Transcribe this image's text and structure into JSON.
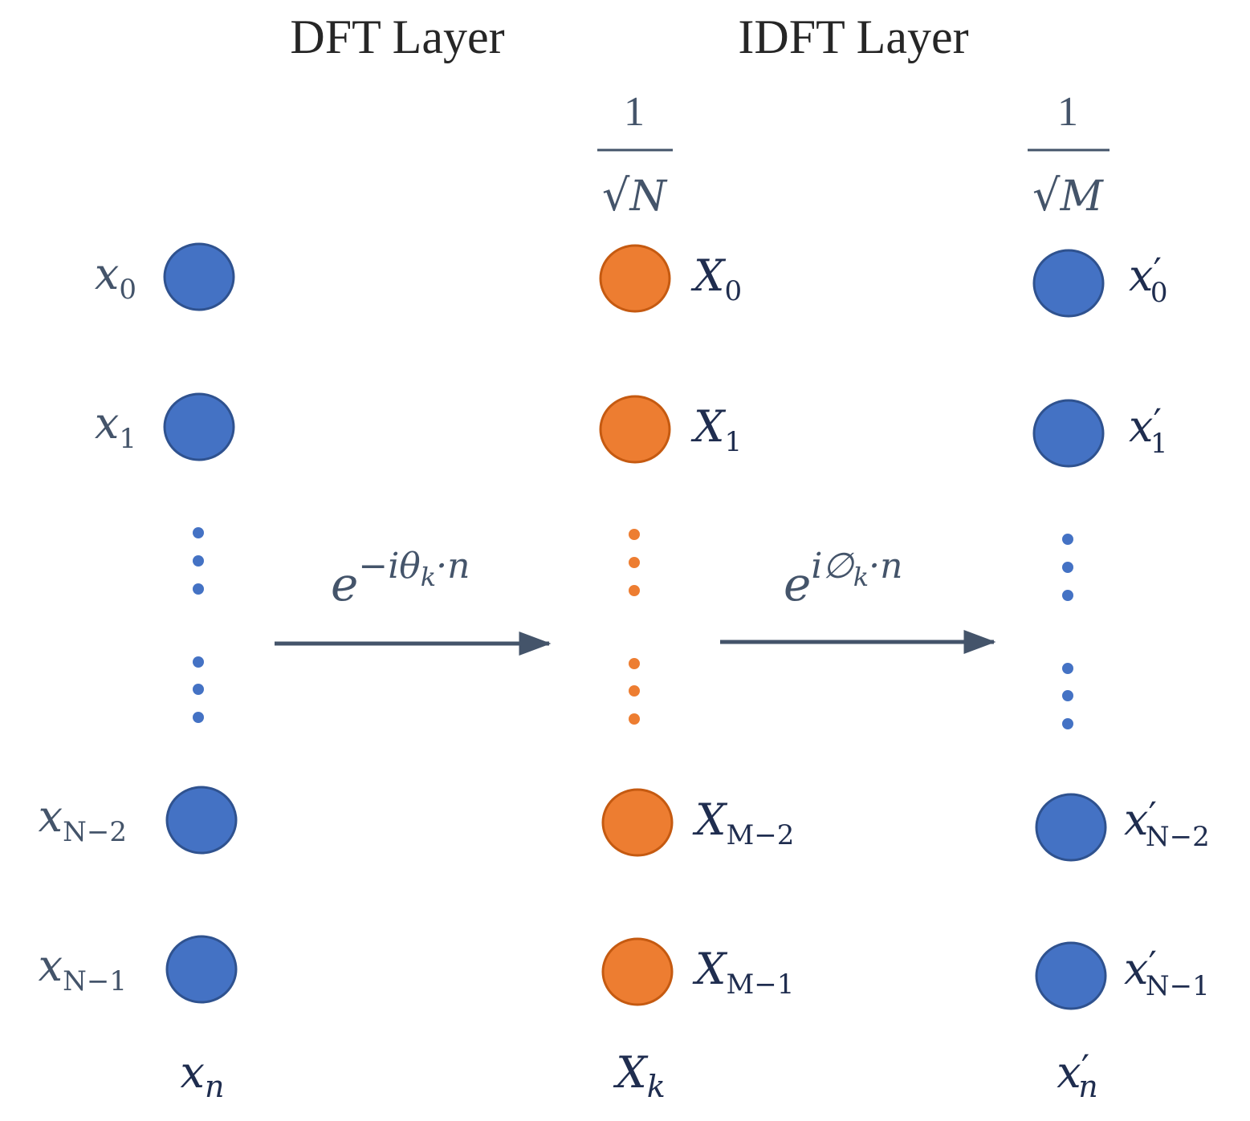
{
  "colors": {
    "blue_fill": "#4472C4",
    "blue_stroke": "#2F528F",
    "orange_fill": "#ED7D31",
    "orange_stroke": "#C55A11",
    "input_label": "#44546A",
    "output_label": "#1F2D4F",
    "arrow": "#44546A",
    "title": "#262626"
  },
  "titles": {
    "dft": "DFT Layer",
    "idft": "IDFT Layer"
  },
  "input_column": {
    "nodes": [
      {
        "base": "x",
        "sub": "0"
      },
      {
        "base": "x",
        "sub": "1"
      },
      {
        "base": "x",
        "sub": "N−2"
      },
      {
        "base": "x",
        "sub": "N−1"
      }
    ],
    "bottom_label": {
      "base": "x",
      "sub": "n"
    }
  },
  "middle_column": {
    "scale": {
      "numerator": "1",
      "radical": "√",
      "radicand": "N"
    },
    "nodes": [
      {
        "base": "X",
        "sub": "0"
      },
      {
        "base": "X",
        "sub": "1"
      },
      {
        "base": "X",
        "sub": "M−2"
      },
      {
        "base": "X",
        "sub": "M−1"
      }
    ],
    "bottom_label": {
      "base": "X",
      "sub": "k"
    }
  },
  "output_column": {
    "scale": {
      "numerator": "1",
      "radical": "√",
      "radicand": "M"
    },
    "nodes": [
      {
        "base": "x",
        "prime": "′",
        "sub": "0"
      },
      {
        "base": "x",
        "prime": "′",
        "sub": "1"
      },
      {
        "base": "x",
        "prime": "′",
        "sub": "N−2"
      },
      {
        "base": "x",
        "prime": "′",
        "sub": "N−1"
      }
    ],
    "bottom_label": {
      "base": "x",
      "prime": "′",
      "sub": "n"
    }
  },
  "transforms": {
    "dft": {
      "base": "e",
      "exponent": "−iθ",
      "exp_sub": "k",
      "exp_tail": "·n"
    },
    "idft": {
      "base": "e",
      "exponent": "i∅",
      "exp_sub": "k",
      "exp_tail": "·n"
    }
  }
}
